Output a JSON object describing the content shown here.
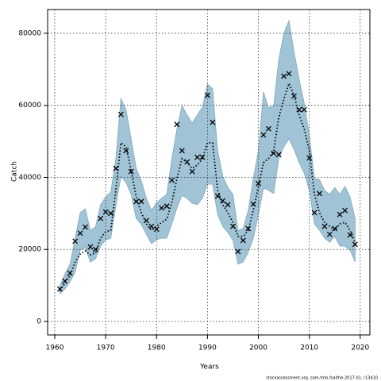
{
  "chart_data": {
    "type": "line",
    "x_label": "Years",
    "y_label": "Catch",
    "footer": "stockassessment.org, sam-tmb-fsaithe-2017-01, r13410",
    "x": [
      1961,
      1962,
      1963,
      1964,
      1965,
      1966,
      1967,
      1968,
      1969,
      1970,
      1971,
      1972,
      1973,
      1974,
      1975,
      1976,
      1977,
      1978,
      1979,
      1980,
      1981,
      1982,
      1983,
      1984,
      1985,
      1986,
      1987,
      1988,
      1989,
      1990,
      1991,
      1992,
      1993,
      1994,
      1995,
      1996,
      1997,
      1998,
      1999,
      2000,
      2001,
      2002,
      2003,
      2004,
      2005,
      2006,
      2007,
      2008,
      2009,
      2010,
      2011,
      2012,
      2013,
      2014,
      2015,
      2016,
      2017,
      2018,
      2019
    ],
    "observed": {
      "color": "#000000",
      "values": [
        9000,
        11200,
        13400,
        22300,
        24500,
        26200,
        20700,
        20000,
        28600,
        30400,
        30000,
        42500,
        57500,
        47400,
        41600,
        33300,
        33300,
        28000,
        26400,
        25600,
        31500,
        32000,
        39200,
        54700,
        47400,
        44300,
        41600,
        45600,
        45600,
        62800,
        55300,
        34800,
        33500,
        32400,
        26400,
        19400,
        22500,
        25800,
        32600,
        38300,
        51800,
        53500,
        46700,
        46300,
        68100,
        68800,
        62600,
        58800,
        58800,
        45400,
        30200,
        35500,
        26400,
        24200,
        25800,
        29700,
        30800,
        24000,
        21400
      ]
    },
    "fitted": {
      "color": "#000000",
      "values": [
        8600,
        10600,
        12800,
        16500,
        18700,
        19600,
        18500,
        19000,
        23100,
        24900,
        25300,
        36400,
        49600,
        48500,
        41900,
        34600,
        30200,
        27100,
        25300,
        26400,
        27500,
        28400,
        33000,
        39700,
        45200,
        44100,
        42500,
        43400,
        45200,
        49600,
        49600,
        36400,
        32400,
        30200,
        27500,
        23600,
        23600,
        25300,
        30800,
        37500,
        44100,
        45200,
        47400,
        56600,
        61700,
        66100,
        62800,
        57300,
        53500,
        47400,
        35300,
        30200,
        27500,
        26400,
        25300,
        27100,
        27500,
        25300,
        22000
      ]
    },
    "band": {
      "color": "#a0c4d6",
      "upper": [
        9900,
        13200,
        15900,
        23100,
        30200,
        31300,
        25300,
        26200,
        32400,
        34600,
        35900,
        45200,
        61900,
        58800,
        50700,
        42500,
        39000,
        34200,
        30800,
        33000,
        34200,
        35300,
        45200,
        53500,
        59900,
        57300,
        55100,
        57300,
        59500,
        65900,
        64600,
        47400,
        40300,
        37200,
        35300,
        25300,
        25800,
        30800,
        39700,
        47400,
        63700,
        59300,
        59900,
        72700,
        80000,
        83500,
        74900,
        67200,
        60600,
        51800,
        39700,
        39400,
        36400,
        35300,
        37200,
        35300,
        37500,
        34600,
        28600
      ],
      "lower": [
        7700,
        9000,
        11000,
        13700,
        19800,
        20500,
        16500,
        17400,
        20900,
        22700,
        23100,
        32000,
        40300,
        38600,
        35300,
        28600,
        26900,
        24200,
        21600,
        22700,
        23100,
        23100,
        27100,
        31500,
        35000,
        34200,
        32800,
        32400,
        34200,
        38100,
        38100,
        29700,
        26400,
        24700,
        22500,
        15900,
        16500,
        19200,
        23100,
        29700,
        37000,
        36400,
        35500,
        45200,
        48500,
        50700,
        47800,
        44100,
        41200,
        36400,
        27100,
        25300,
        23100,
        22000,
        23600,
        20900,
        20900,
        19800,
        16500
      ]
    },
    "xlim": [
      1958.6,
      2021.9
    ],
    "ylim": [
      -3750,
      86600
    ],
    "xticks": [
      1960,
      1970,
      1980,
      1990,
      2000,
      2010,
      2020
    ],
    "yticks": [
      0,
      20000,
      40000,
      60000,
      80000
    ],
    "grid": true
  }
}
